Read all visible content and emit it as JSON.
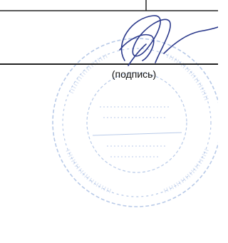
{
  "signature_block": {
    "caption": "(подпись)"
  }
}
